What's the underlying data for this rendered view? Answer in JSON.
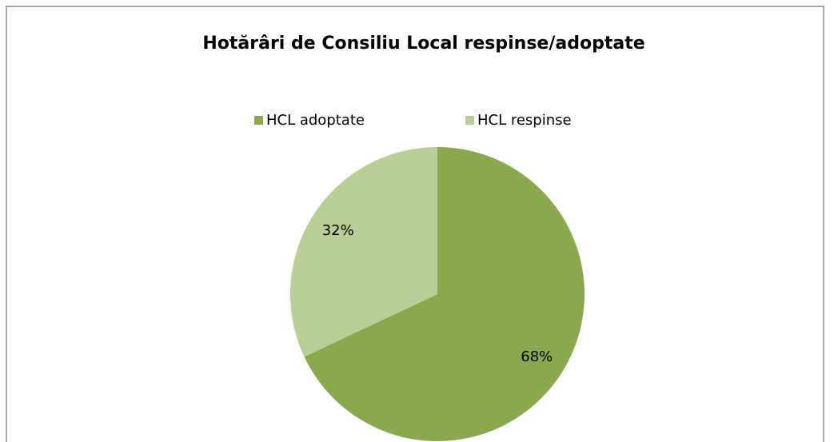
{
  "chart_data": {
    "type": "pie",
    "title": "Hotărâri de Consiliu Local respinse/adoptate",
    "categories": [
      "HCL adoptate",
      "HCL respinse"
    ],
    "values": [
      68,
      32
    ],
    "value_labels": [
      "68%",
      "32%"
    ],
    "colors": [
      "#8aa84e",
      "#b9cd96"
    ],
    "legend": "top"
  }
}
